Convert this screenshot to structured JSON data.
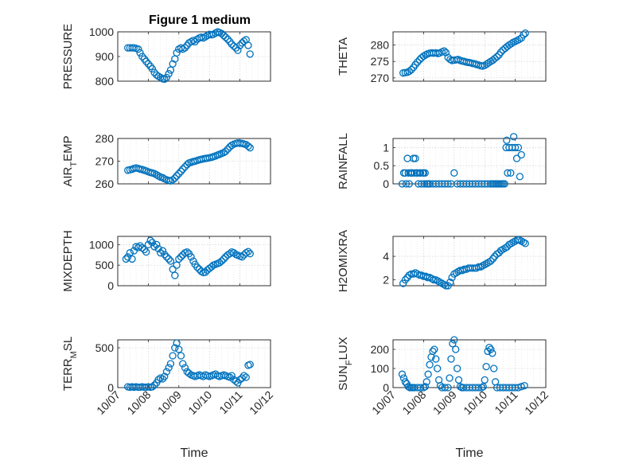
{
  "figure": {
    "title": "Figure 1 medium",
    "marker_color": "#0072BD"
  },
  "chart_data": [
    {
      "type": "scatter",
      "id": "pressure",
      "ylabel": "PRESSURE",
      "xlabel": "",
      "ylim": [
        800,
        1000
      ],
      "yticks": [
        800,
        900,
        1000
      ],
      "yticklabels": [
        "800",
        "900",
        "1000"
      ],
      "xlim": [
        7,
        12
      ],
      "xticks": [
        7,
        8,
        9,
        10,
        11,
        12
      ],
      "xticklabels": [],
      "x": [
        7.33,
        7.4,
        7.47,
        7.53,
        7.6,
        7.67,
        7.73,
        7.8,
        7.87,
        7.93,
        8.0,
        8.07,
        8.13,
        8.2,
        8.27,
        8.33,
        8.4,
        8.47,
        8.53,
        8.6,
        8.67,
        8.73,
        8.8,
        8.87,
        8.93,
        9.0,
        9.07,
        9.13,
        9.2,
        9.27,
        9.33,
        9.4,
        9.47,
        9.53,
        9.6,
        9.67,
        9.73,
        9.8,
        9.87,
        9.93,
        10.0,
        10.07,
        10.13,
        10.2,
        10.27,
        10.33,
        10.4,
        10.47,
        10.53,
        10.6,
        10.67,
        10.73,
        10.8,
        10.87,
        10.93,
        11.0,
        11.07,
        11.13,
        11.2,
        11.27,
        11.33
      ],
      "y": [
        935,
        935,
        935,
        935,
        933,
        930,
        915,
        900,
        890,
        880,
        870,
        860,
        850,
        835,
        825,
        820,
        815,
        810,
        808,
        815,
        830,
        845,
        870,
        890,
        915,
        930,
        935,
        930,
        935,
        945,
        955,
        960,
        965,
        960,
        970,
        975,
        978,
        975,
        980,
        985,
        990,
        988,
        990,
        995,
        1000,
        997,
        993,
        985,
        978,
        970,
        960,
        950,
        942,
        935,
        925,
        945,
        955,
        962,
        968,
        945,
        910
      ]
    },
    {
      "type": "scatter",
      "id": "theta",
      "ylabel": "THETA",
      "xlabel": "",
      "ylim": [
        269,
        284
      ],
      "yticks": [
        270,
        275,
        280
      ],
      "yticklabels": [
        "270",
        "275",
        "280"
      ],
      "xlim": [
        7,
        12
      ],
      "xticks": [
        7,
        8,
        9,
        10,
        11,
        12
      ],
      "xticklabels": [],
      "x": [
        7.33,
        7.4,
        7.47,
        7.53,
        7.6,
        7.67,
        7.73,
        7.8,
        7.87,
        7.93,
        8.0,
        8.07,
        8.13,
        8.2,
        8.27,
        8.33,
        8.4,
        8.47,
        8.53,
        8.6,
        8.67,
        8.73,
        8.8,
        8.87,
        8.93,
        9.0,
        9.07,
        9.13,
        9.2,
        9.27,
        9.33,
        9.4,
        9.47,
        9.53,
        9.6,
        9.67,
        9.73,
        9.8,
        9.87,
        9.93,
        10.0,
        10.07,
        10.13,
        10.2,
        10.27,
        10.33,
        10.4,
        10.47,
        10.53,
        10.6,
        10.67,
        10.73,
        10.8,
        10.87,
        10.93,
        11.0,
        11.07,
        11.13,
        11.2,
        11.27,
        11.33
      ],
      "y": [
        271.5,
        271.6,
        271.7,
        272,
        272.5,
        273.2,
        274,
        274.8,
        275.5,
        276.1,
        276.6,
        277,
        277.3,
        277.5,
        277.6,
        277.5,
        277.6,
        277.4,
        277.6,
        277.9,
        278.2,
        277.7,
        276.2,
        275.6,
        275.3,
        275.4,
        275.5,
        275.6,
        275.3,
        275.1,
        275,
        274.8,
        274.7,
        274.6,
        274.4,
        274.3,
        274.1,
        273.9,
        273.7,
        273.6,
        273.8,
        274.2,
        274.6,
        275,
        275.4,
        275.9,
        276.4,
        277,
        277.8,
        278.5,
        279,
        279.5,
        280,
        280.4,
        280.8,
        281.1,
        281.4,
        281.7,
        282.1,
        283.1,
        283.6
      ]
    },
    {
      "type": "scatter",
      "id": "air_temp",
      "ylabel": "AIR_TEMP",
      "xlabel": "",
      "ylim": [
        260,
        280
      ],
      "yticks": [
        260,
        270,
        280
      ],
      "yticklabels": [
        "260",
        "270",
        "280"
      ],
      "xlim": [
        7,
        12
      ],
      "xticks": [
        7,
        8,
        9,
        10,
        11,
        12
      ],
      "xticklabels": [],
      "x": [
        7.33,
        7.4,
        7.47,
        7.53,
        7.6,
        7.67,
        7.73,
        7.8,
        7.87,
        7.93,
        8.0,
        8.07,
        8.13,
        8.2,
        8.27,
        8.33,
        8.4,
        8.47,
        8.53,
        8.6,
        8.67,
        8.73,
        8.8,
        8.87,
        8.93,
        9.0,
        9.07,
        9.13,
        9.2,
        9.27,
        9.33,
        9.4,
        9.47,
        9.53,
        9.6,
        9.67,
        9.73,
        9.8,
        9.87,
        9.93,
        10.0,
        10.07,
        10.13,
        10.2,
        10.27,
        10.33,
        10.4,
        10.47,
        10.53,
        10.6,
        10.67,
        10.73,
        10.8,
        10.87,
        10.93,
        11.0,
        11.07,
        11.13,
        11.2,
        11.27,
        11.33
      ],
      "y": [
        266,
        266.2,
        266.4,
        266.8,
        267,
        266.8,
        266.5,
        266.3,
        266,
        265.7,
        265.3,
        265,
        264.8,
        264.5,
        264,
        263.5,
        263,
        262.7,
        262.2,
        261.8,
        261.5,
        261.3,
        261.8,
        262.5,
        263.5,
        264.5,
        265.5,
        266.5,
        267.5,
        268.5,
        269.2,
        269.5,
        269.8,
        270,
        270.3,
        270.6,
        270.8,
        271,
        271.2,
        271.3,
        271.5,
        271.7,
        272,
        272.3,
        272.7,
        273,
        273.4,
        273.8,
        274.3,
        275.3,
        276.3,
        277,
        277.5,
        277.8,
        278,
        277.9,
        277.8,
        277.6,
        277.3,
        276.6,
        275.9
      ]
    },
    {
      "type": "scatter",
      "id": "rainfall",
      "ylabel": "RAINFALL",
      "xlabel": "",
      "ylim": [
        0,
        1.25
      ],
      "yticks": [
        0,
        0.5,
        1
      ],
      "yticklabels": [
        "0",
        "0.5",
        "1"
      ],
      "xlim": [
        7,
        12
      ],
      "xticks": [
        7,
        8,
        9,
        10,
        11,
        12
      ],
      "xticklabels": [],
      "x": [
        7.3,
        7.35,
        7.4,
        7.43,
        7.47,
        7.5,
        7.53,
        7.57,
        7.6,
        7.63,
        7.67,
        7.7,
        7.73,
        7.77,
        7.8,
        7.83,
        7.87,
        7.9,
        7.93,
        7.97,
        8.0,
        8.03,
        8.05,
        8.1,
        8.15,
        8.2,
        8.3,
        8.4,
        8.5,
        8.6,
        8.7,
        8.8,
        8.9,
        9.0,
        9.1,
        9.2,
        9.3,
        9.4,
        9.5,
        9.6,
        9.7,
        9.8,
        9.9,
        10.0,
        10.1,
        10.2,
        10.25,
        10.3,
        10.35,
        10.4,
        10.45,
        10.5,
        10.55,
        10.6,
        10.65,
        10.7,
        10.72,
        10.75,
        10.8,
        10.85,
        10.9,
        10.95,
        11.0,
        11.05,
        11.1,
        11.15,
        11.2
      ],
      "y": [
        0,
        0.3,
        0.3,
        0,
        0.7,
        0.3,
        0,
        0.3,
        0.3,
        0.3,
        0.7,
        0.3,
        0.7,
        0.3,
        0.3,
        0,
        0.3,
        0.3,
        0,
        0.3,
        0.3,
        0,
        0.3,
        0,
        0,
        0,
        0,
        0,
        0,
        0,
        0,
        0,
        0,
        0.3,
        0,
        0,
        0,
        0,
        0,
        0,
        0,
        0,
        0,
        0,
        0,
        0,
        0,
        0,
        0,
        0,
        0,
        0,
        0,
        0,
        0,
        1,
        1.2,
        0.3,
        1,
        0.3,
        1,
        1.3,
        1,
        0.7,
        1,
        0.2,
        0.8
      ]
    },
    {
      "type": "scatter",
      "id": "mixdepth",
      "ylabel": "MIXDEPTH",
      "xlabel": "",
      "ylim": [
        0,
        1200
      ],
      "yticks": [
        0,
        500,
        1000
      ],
      "yticklabels": [
        "0",
        "500",
        "1000"
      ],
      "xlim": [
        7,
        12
      ],
      "xticks": [
        7,
        8,
        9,
        10,
        11,
        12
      ],
      "xticklabels": [],
      "x": [
        7.27,
        7.33,
        7.4,
        7.47,
        7.53,
        7.6,
        7.67,
        7.73,
        7.8,
        7.87,
        7.93,
        8.0,
        8.07,
        8.13,
        8.2,
        8.27,
        8.33,
        8.4,
        8.47,
        8.53,
        8.6,
        8.67,
        8.73,
        8.8,
        8.87,
        8.93,
        9.0,
        9.07,
        9.13,
        9.2,
        9.27,
        9.33,
        9.4,
        9.47,
        9.53,
        9.6,
        9.67,
        9.73,
        9.8,
        9.87,
        9.93,
        10.0,
        10.07,
        10.13,
        10.2,
        10.27,
        10.33,
        10.4,
        10.47,
        10.53,
        10.6,
        10.67,
        10.73,
        10.8,
        10.87,
        10.93,
        11.0,
        11.07,
        11.13,
        11.2,
        11.27,
        11.33
      ],
      "y": [
        650,
        700,
        800,
        650,
        850,
        950,
        930,
        970,
        920,
        880,
        820,
        1000,
        1100,
        1050,
        950,
        1000,
        900,
        800,
        850,
        760,
        700,
        650,
        600,
        400,
        250,
        500,
        650,
        700,
        750,
        800,
        820,
        780,
        700,
        600,
        520,
        450,
        400,
        350,
        320,
        330,
        380,
        420,
        460,
        500,
        520,
        540,
        560,
        600,
        650,
        700,
        750,
        780,
        820,
        800,
        760,
        740,
        720,
        700,
        750,
        800,
        830,
        780
      ]
    },
    {
      "type": "scatter",
      "id": "h2omixra",
      "ylabel": "H2OMIXRA",
      "xlabel": "",
      "ylim": [
        1.5,
        5.7
      ],
      "yticks": [
        2,
        4
      ],
      "yticklabels": [
        "2",
        "4"
      ],
      "xlim": [
        7,
        12
      ],
      "xticks": [
        7,
        8,
        9,
        10,
        11,
        12
      ],
      "xticklabels": [],
      "x": [
        7.33,
        7.4,
        7.47,
        7.53,
        7.6,
        7.67,
        7.73,
        7.8,
        7.87,
        7.93,
        8.0,
        8.07,
        8.13,
        8.2,
        8.27,
        8.33,
        8.4,
        8.47,
        8.53,
        8.6,
        8.67,
        8.73,
        8.8,
        8.87,
        8.93,
        9.0,
        9.07,
        9.13,
        9.2,
        9.27,
        9.33,
        9.4,
        9.47,
        9.53,
        9.6,
        9.67,
        9.73,
        9.8,
        9.87,
        9.93,
        10.0,
        10.07,
        10.13,
        10.2,
        10.27,
        10.33,
        10.4,
        10.47,
        10.53,
        10.6,
        10.67,
        10.73,
        10.8,
        10.87,
        10.93,
        11.0,
        11.07,
        11.13,
        11.2,
        11.27,
        11.33
      ],
      "y": [
        1.7,
        2,
        2.2,
        2.4,
        2.5,
        2.5,
        2.6,
        2.5,
        2.4,
        2.4,
        2.3,
        2.3,
        2.2,
        2.2,
        2.1,
        2,
        2,
        1.9,
        1.8,
        1.7,
        1.6,
        1.5,
        1.5,
        1.8,
        2.2,
        2.5,
        2.6,
        2.7,
        2.8,
        2.8,
        2.9,
        2.9,
        3,
        3,
        3,
        3,
        3,
        3.1,
        3.1,
        3.2,
        3.3,
        3.4,
        3.5,
        3.6,
        3.8,
        4,
        4.2,
        4.3,
        4.5,
        4.6,
        4.7,
        4.8,
        5,
        5.1,
        5.2,
        5.3,
        5.4,
        5.4,
        5.3,
        5.2,
        5.1
      ]
    },
    {
      "type": "scatter",
      "id": "terr_msl",
      "ylabel": "TERR_MSL",
      "xlabel": "Time",
      "ylim": [
        0,
        600
      ],
      "yticks": [
        0,
        500
      ],
      "yticklabels": [
        "0",
        "500"
      ],
      "xlim": [
        7,
        12
      ],
      "xticks": [
        7,
        8,
        9,
        10,
        11,
        12
      ],
      "xticklabels": [
        "10/07",
        "10/08",
        "10/09",
        "10/10",
        "10/11",
        "10/12"
      ],
      "x": [
        7.33,
        7.4,
        7.47,
        7.53,
        7.6,
        7.67,
        7.73,
        7.8,
        7.87,
        7.93,
        8.0,
        8.07,
        8.13,
        8.2,
        8.27,
        8.33,
        8.4,
        8.47,
        8.53,
        8.6,
        8.67,
        8.73,
        8.8,
        8.87,
        8.93,
        9.0,
        9.07,
        9.13,
        9.2,
        9.27,
        9.33,
        9.4,
        9.47,
        9.53,
        9.6,
        9.67,
        9.73,
        9.8,
        9.87,
        9.93,
        10.0,
        10.07,
        10.13,
        10.2,
        10.27,
        10.33,
        10.4,
        10.47,
        10.53,
        10.6,
        10.67,
        10.73,
        10.8,
        10.87,
        10.93,
        11.0,
        11.07,
        11.13,
        11.2,
        11.27,
        11.33
      ],
      "y": [
        10,
        5,
        10,
        5,
        10,
        5,
        5,
        10,
        5,
        5,
        10,
        5,
        10,
        30,
        60,
        100,
        120,
        110,
        140,
        200,
        250,
        300,
        400,
        500,
        560,
        480,
        400,
        300,
        250,
        200,
        180,
        160,
        150,
        140,
        150,
        160,
        150,
        140,
        160,
        150,
        140,
        150,
        160,
        170,
        150,
        140,
        150,
        160,
        150,
        140,
        130,
        150,
        100,
        80,
        60,
        100,
        120,
        150,
        130,
        280,
        290
      ]
    },
    {
      "type": "scatter",
      "id": "sun_flux",
      "ylabel": "SUN_FLUX",
      "xlabel": "Time",
      "ylim": [
        0,
        250
      ],
      "yticks": [
        0,
        100,
        200
      ],
      "yticklabels": [
        "0",
        "100",
        "200"
      ],
      "xlim": [
        7,
        12
      ],
      "xticks": [
        7,
        8,
        9,
        10,
        11,
        12
      ],
      "xticklabels": [
        "10/07",
        "10/08",
        "10/09",
        "10/10",
        "10/11",
        "10/12"
      ],
      "x": [
        7.3,
        7.35,
        7.4,
        7.45,
        7.5,
        7.55,
        7.6,
        7.65,
        7.7,
        7.8,
        7.9,
        8.0,
        8.05,
        8.1,
        8.15,
        8.2,
        8.25,
        8.3,
        8.35,
        8.4,
        8.45,
        8.5,
        8.55,
        8.6,
        8.7,
        8.8,
        8.85,
        8.9,
        8.95,
        9.0,
        9.05,
        9.1,
        9.15,
        9.2,
        9.25,
        9.3,
        9.4,
        9.5,
        9.6,
        9.7,
        9.8,
        9.9,
        9.95,
        10.0,
        10.05,
        10.1,
        10.15,
        10.2,
        10.25,
        10.3,
        10.35,
        10.4,
        10.5,
        10.6,
        10.7,
        10.8,
        10.9,
        11.0,
        11.1,
        11.2,
        11.3
      ],
      "y": [
        70,
        50,
        30,
        20,
        5,
        0,
        0,
        0,
        0,
        0,
        0,
        0,
        5,
        30,
        70,
        120,
        160,
        190,
        200,
        150,
        100,
        40,
        10,
        0,
        0,
        0,
        50,
        150,
        230,
        250,
        200,
        100,
        40,
        5,
        0,
        0,
        0,
        0,
        0,
        0,
        0,
        0,
        5,
        40,
        110,
        190,
        210,
        200,
        180,
        100,
        30,
        0,
        0,
        0,
        0,
        0,
        0,
        0,
        0,
        5,
        10
      ]
    }
  ]
}
